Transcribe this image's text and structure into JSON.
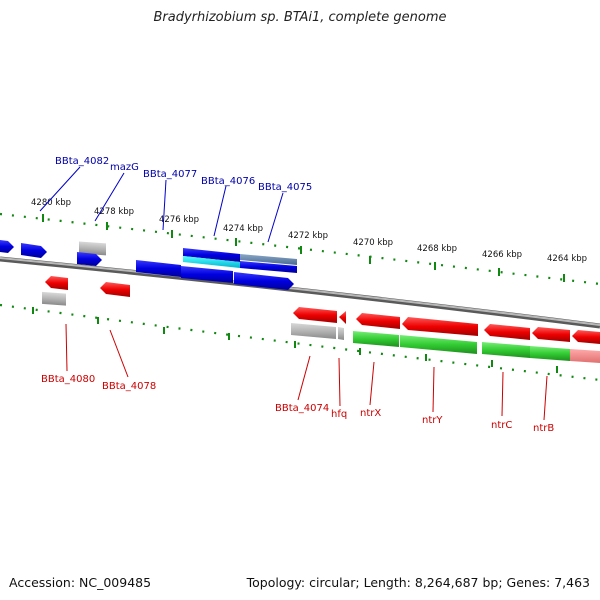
{
  "title": "Bradyrhizobium sp. BTAi1, complete genome",
  "footer": {
    "accession": "Accession: NC_009485",
    "summary": "Topology: circular; Length: 8,264,687 bp; Genes: 7,463"
  },
  "colors": {
    "plus_strand_gene": "#0000ee",
    "minus_strand_gene": "#ee0000",
    "rna_gene": "#b0b0b0",
    "operon_block": "#33cc33",
    "tick": "#118811",
    "backbone": "#888888"
  },
  "kbp_ticks": [
    {
      "label": "4280 kbp"
    },
    {
      "label": "4278 kbp"
    },
    {
      "label": "4276 kbp"
    },
    {
      "label": "4274 kbp"
    },
    {
      "label": "4272 kbp"
    },
    {
      "label": "4270 kbp"
    },
    {
      "label": "4268 kbp"
    },
    {
      "label": "4266 kbp"
    },
    {
      "label": "4264 kbp"
    }
  ],
  "top_labels": [
    {
      "text": "BBta_4082"
    },
    {
      "text": "mazG"
    },
    {
      "text": "BBta_4077"
    },
    {
      "text": "BBta_4076"
    },
    {
      "text": "BBta_4075"
    }
  ],
  "bottom_labels": [
    {
      "text": "BBta_4080"
    },
    {
      "text": "BBta_4078"
    },
    {
      "text": "BBta_4074"
    },
    {
      "text": "hfq"
    },
    {
      "text": "ntrX"
    },
    {
      "text": "ntrY"
    },
    {
      "text": "ntrC"
    },
    {
      "text": "ntrB"
    }
  ]
}
